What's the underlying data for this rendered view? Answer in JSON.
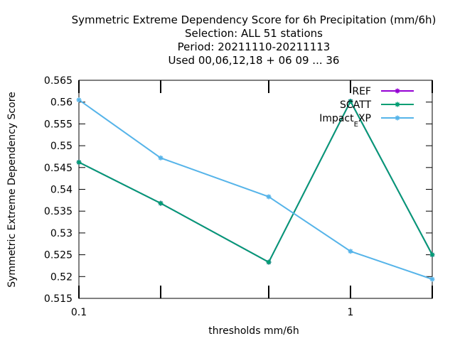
{
  "chart_data": {
    "type": "line",
    "title_lines": [
      "Symmetric Extreme Dependency Score  for 6h Precipitation (mm/6h)",
      "Selection: ALL     51 stations",
      "Period: 20211110-20211113",
      "Used  00,06,12,18 + 06 09 ... 36"
    ],
    "xlabel": "thresholds mm/6h",
    "ylabel": "Symmetric Extreme Dependency Score",
    "x_scale": "log",
    "xlim": [
      0.1,
      2
    ],
    "ylim": [
      0.515,
      0.565
    ],
    "x_ticks": [
      {
        "value": 0.1,
        "label": "0.1"
      },
      {
        "value": 0.2,
        "label": ""
      },
      {
        "value": 0.5,
        "label": ""
      },
      {
        "value": 1,
        "label": "1"
      },
      {
        "value": 2,
        "label": ""
      }
    ],
    "y_ticks": [
      {
        "value": 0.515,
        "label": "0.515"
      },
      {
        "value": 0.52,
        "label": "0.52"
      },
      {
        "value": 0.525,
        "label": "0.525"
      },
      {
        "value": 0.53,
        "label": "0.53"
      },
      {
        "value": 0.535,
        "label": "0.535"
      },
      {
        "value": 0.54,
        "label": "0.54"
      },
      {
        "value": 0.545,
        "label": "0.545"
      },
      {
        "value": 0.55,
        "label": "0.55"
      },
      {
        "value": 0.555,
        "label": "0.555"
      },
      {
        "value": 0.56,
        "label": "0.56"
      },
      {
        "value": 0.565,
        "label": "0.565"
      }
    ],
    "legend_position": "top-right",
    "x": [
      0.1,
      0.2,
      0.5,
      1,
      2
    ],
    "series": [
      {
        "name": "REF",
        "legend_parts": [
          "REF"
        ],
        "color": "#9400d3",
        "values": [
          0.5462,
          0.5368,
          0.5233,
          0.5602,
          0.525
        ]
      },
      {
        "name": "SCATT",
        "legend_parts": [
          "SCATT"
        ],
        "color": "#009e73",
        "values": [
          0.5462,
          0.5368,
          0.5233,
          0.5602,
          0.525
        ]
      },
      {
        "name": "Impact_EXP",
        "legend_parts": [
          "Impact",
          "E",
          "XP"
        ],
        "color": "#56b4e9",
        "values": [
          0.5605,
          0.5472,
          0.5383,
          0.5258,
          0.5194
        ]
      }
    ]
  }
}
